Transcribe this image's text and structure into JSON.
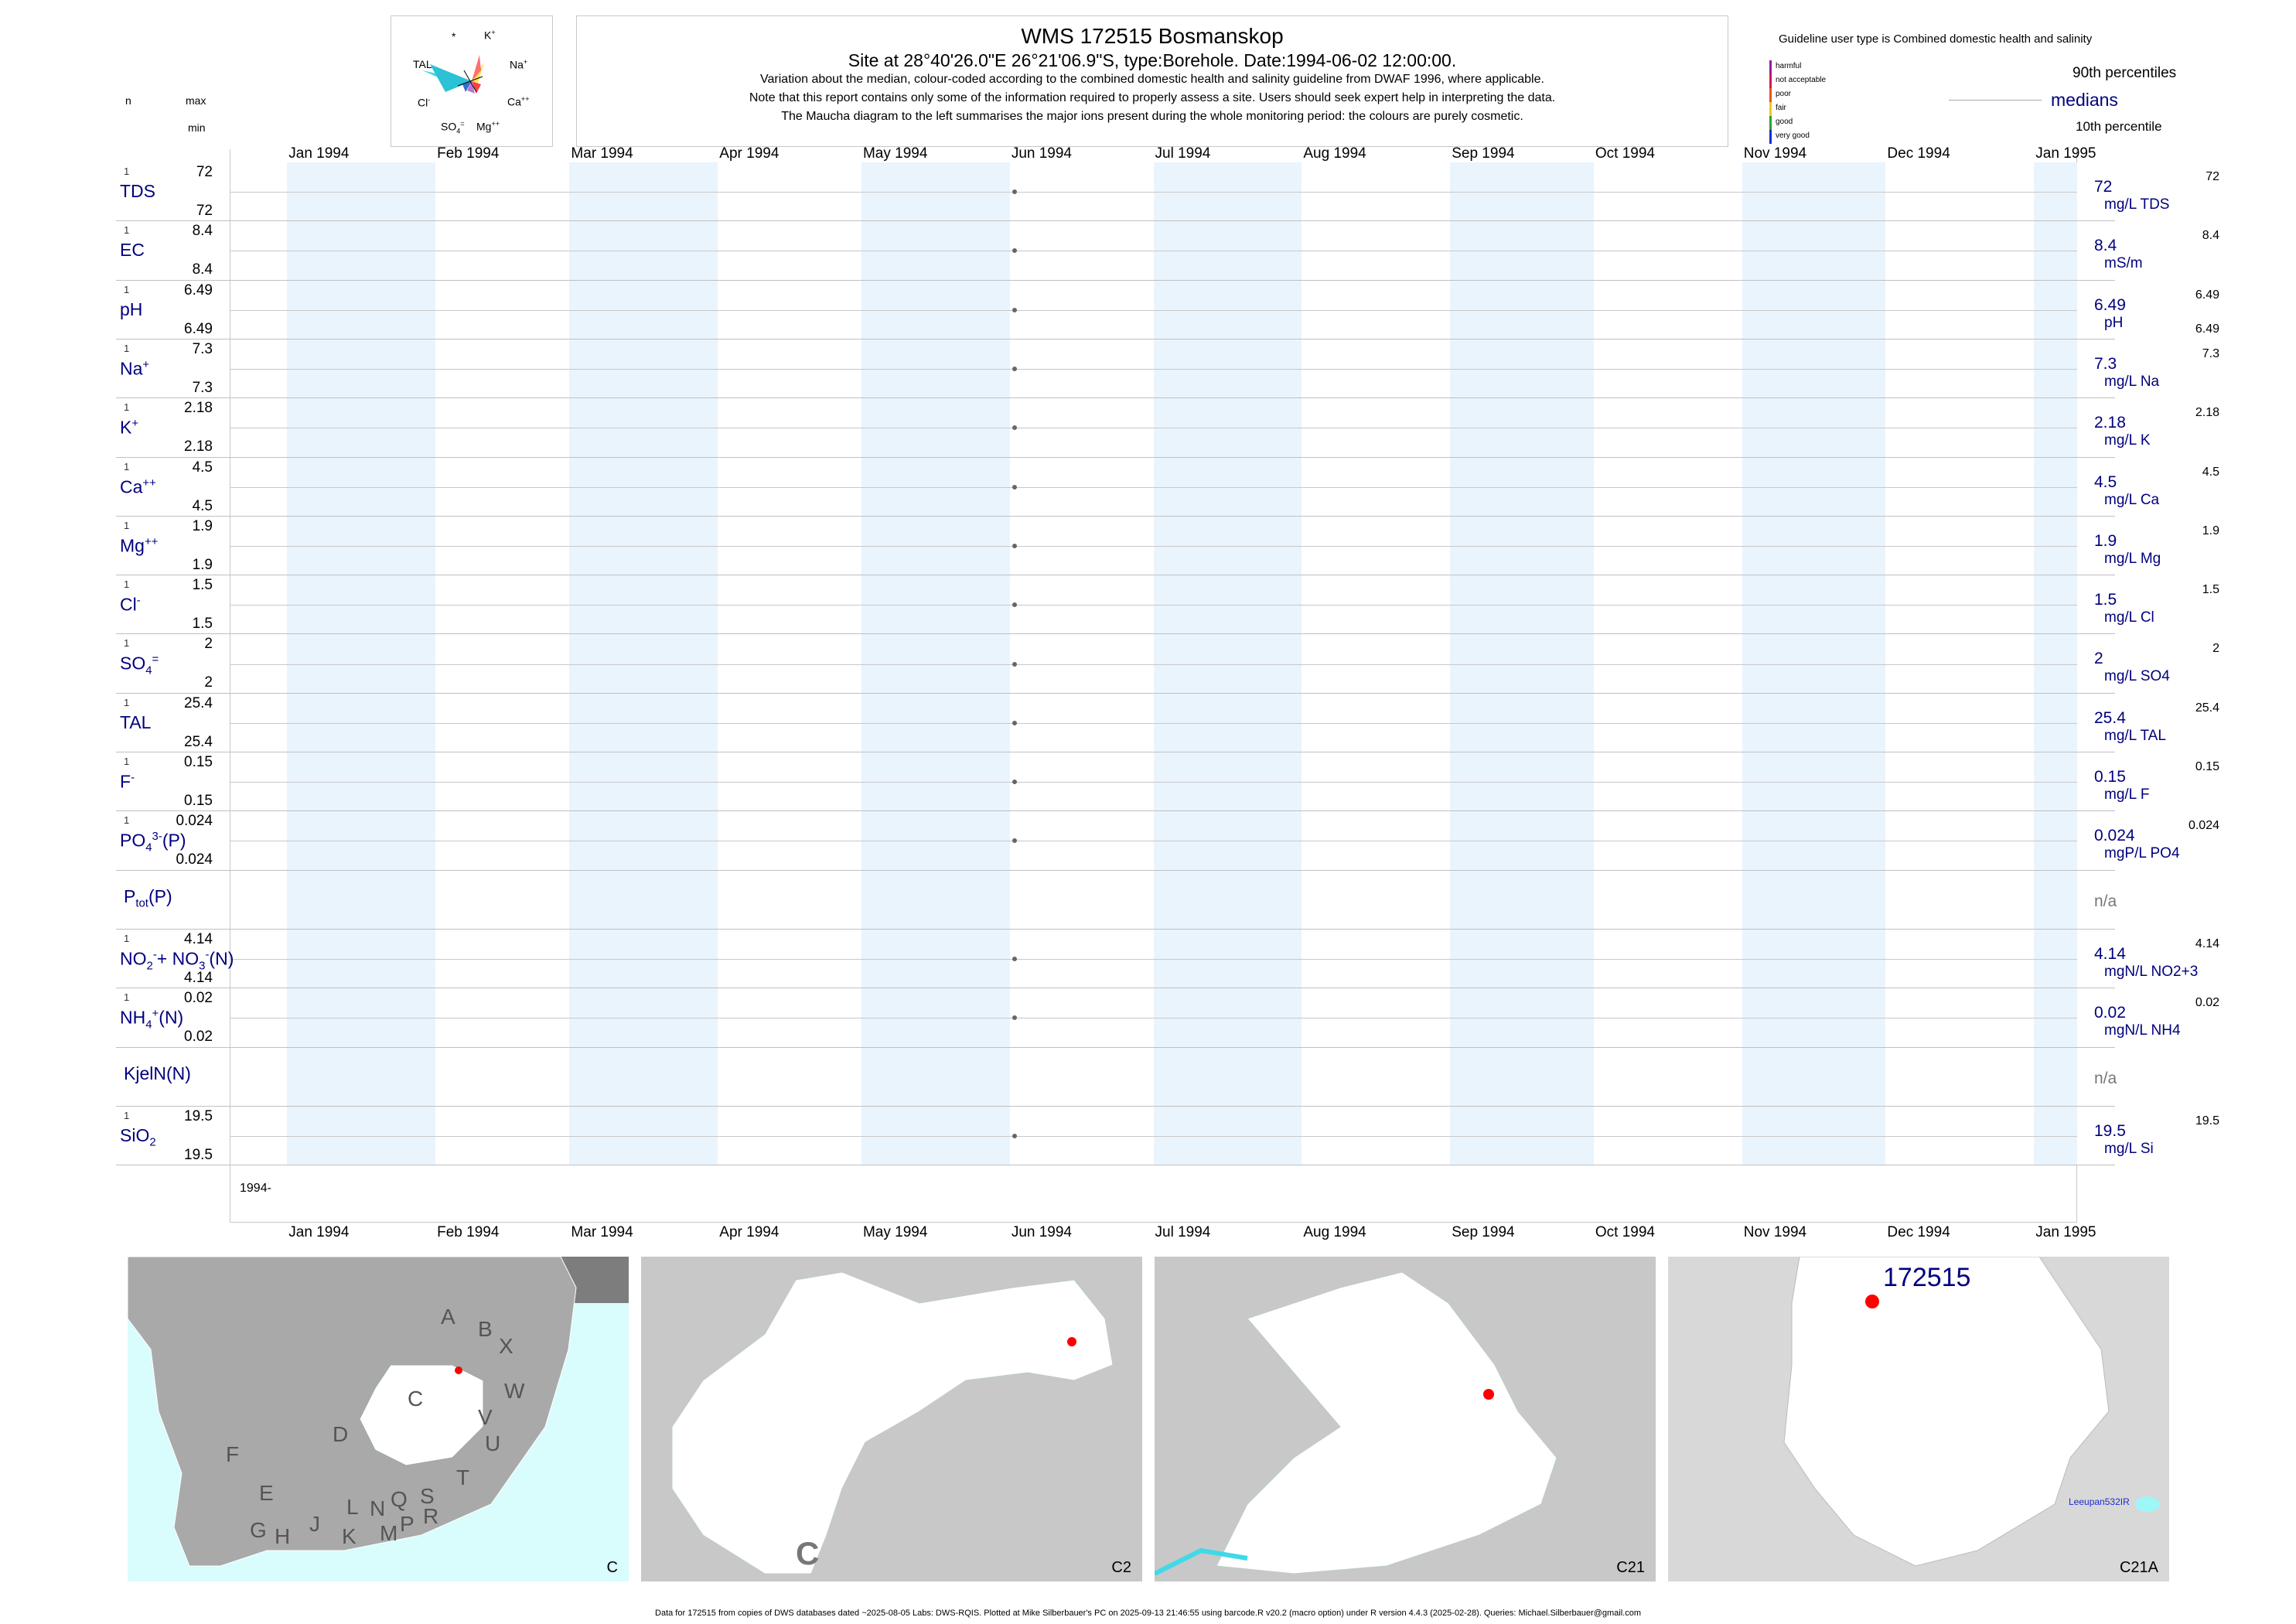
{
  "header": {
    "title": "WMS 172515  Bosmanskop",
    "subtitle": "Site at 28°40'26.0\"E 26°21'06.9\"S, type:Borehole. Date:1994-06-02 12:00:00.",
    "note1": "Variation about the median,  colour-coded according to the combined domestic health and salinity guideline from DWAF 1996, where applicable.",
    "note2": "Note that this report contains only some of the information required to properly assess a site. Users should seek expert help in interpreting the data.",
    "note3": "The Maucha diagram to the left summarises the major ions present during the whole monitoring period: the colours are purely cosmetic."
  },
  "left_header": {
    "n": "n",
    "max": "max",
    "min": "min"
  },
  "maucha": {
    "star": "*",
    "k": "K",
    "na": "Na",
    "ca": "Ca",
    "mg": "Mg",
    "so4": "SO",
    "cl": "Cl",
    "tal": "TAL"
  },
  "legend": {
    "guideline": "Guideline user type is Combined domestic health and salinity",
    "levels": [
      "harmful",
      "not acceptable",
      "poor",
      "fair",
      "good",
      "very good"
    ],
    "level_colors": [
      "#9b1a9b",
      "#d4145a",
      "#e8541b",
      "#f3c81c",
      "#2ea02e",
      "#1a2bd1"
    ],
    "p90": "90th percentiles",
    "medians": "medians",
    "p10": "10th percentile"
  },
  "chart_data": {
    "type": "scatter",
    "title": "WMS 172515  Bosmanskop",
    "x_range": [
      "1993-12-20",
      "1995-01-10"
    ],
    "months": [
      "Jan 1994",
      "Feb 1994",
      "Mar 1994",
      "Apr 1994",
      "May 1994",
      "Jun 1994",
      "Jul 1994",
      "Aug 1994",
      "Sep 1994",
      "Oct 1994",
      "Nov 1994",
      "Dec 1994",
      "Jan 1995"
    ],
    "sample_date": "1994-06-02",
    "year_label": "1994-",
    "rows": [
      {
        "label": "TDS",
        "n": "1",
        "max": "72",
        "min": "72",
        "value": "72",
        "unit": "mg/L TDS",
        "rmax": "72",
        "rmin": "",
        "has_data": true
      },
      {
        "label": "EC",
        "n": "1",
        "max": "8.4",
        "min": "8.4",
        "value": "8.4",
        "unit": "mS/m",
        "rmax": "8.4",
        "rmin": "",
        "has_data": true
      },
      {
        "label": "pH",
        "n": "1",
        "max": "6.49",
        "min": "6.49",
        "value": "6.49",
        "unit": "pH",
        "rmax": "6.49",
        "rmin": "6.49",
        "has_data": true
      },
      {
        "label": "Na",
        "n": "1",
        "max": "7.3",
        "min": "7.3",
        "value": "7.3",
        "unit": "mg/L Na",
        "rmax": "7.3",
        "rmin": "",
        "has_data": true
      },
      {
        "label": "K",
        "n": "1",
        "max": "2.18",
        "min": "2.18",
        "value": "2.18",
        "unit": "mg/L K",
        "rmax": "2.18",
        "rmin": "",
        "has_data": true
      },
      {
        "label": "Ca",
        "n": "1",
        "max": "4.5",
        "min": "4.5",
        "value": "4.5",
        "unit": "mg/L Ca",
        "rmax": "4.5",
        "rmin": "",
        "has_data": true
      },
      {
        "label": "Mg",
        "n": "1",
        "max": "1.9",
        "min": "1.9",
        "value": "1.9",
        "unit": "mg/L Mg",
        "rmax": "1.9",
        "rmin": "",
        "has_data": true
      },
      {
        "label": "Cl",
        "n": "1",
        "max": "1.5",
        "min": "1.5",
        "value": "1.5",
        "unit": "mg/L Cl",
        "rmax": "1.5",
        "rmin": "",
        "has_data": true
      },
      {
        "label": "SO",
        "n": "1",
        "max": "2",
        "min": "2",
        "value": "2",
        "unit": "mg/L SO4",
        "rmax": "2",
        "rmin": "",
        "has_data": true
      },
      {
        "label": "TAL",
        "n": "1",
        "max": "25.4",
        "min": "25.4",
        "value": "25.4",
        "unit": "mg/L TAL",
        "rmax": "25.4",
        "rmin": "",
        "has_data": true
      },
      {
        "label": "F",
        "n": "1",
        "max": "0.15",
        "min": "0.15",
        "value": "0.15",
        "unit": "mg/L F",
        "rmax": "0.15",
        "rmin": "",
        "has_data": true
      },
      {
        "label": "PO",
        "n": "1",
        "max": "0.024",
        "min": "0.024",
        "value": "0.024",
        "unit": "mgP/L PO4",
        "rmax": "0.024",
        "rmin": "",
        "has_data": true
      },
      {
        "label": "P",
        "n": "",
        "max": "",
        "min": "",
        "value": "n/a",
        "unit": "",
        "rmax": "",
        "rmin": "",
        "has_data": false
      },
      {
        "label": "NO",
        "n": "1",
        "max": "4.14",
        "min": "4.14",
        "value": "4.14",
        "unit": "mgN/L NO2+3",
        "rmax": "4.14",
        "rmin": "",
        "has_data": true
      },
      {
        "label": "NH",
        "n": "1",
        "max": "0.02",
        "min": "0.02",
        "value": "0.02",
        "unit": "mgN/L NH4",
        "rmax": "0.02",
        "rmin": "",
        "has_data": true
      },
      {
        "label": "KjelN(N)",
        "n": "",
        "max": "",
        "min": "",
        "value": "n/a",
        "unit": "",
        "rmax": "",
        "rmin": "",
        "has_data": false
      },
      {
        "label": "SiO",
        "n": "1",
        "max": "19.5",
        "min": "19.5",
        "value": "19.5",
        "unit": "mg/L Si",
        "rmax": "19.5",
        "rmin": "",
        "has_data": true
      }
    ]
  },
  "maps": {
    "captions": [
      "C",
      "C2",
      "C21",
      "C21A"
    ],
    "big_letter": "C",
    "site_label": "172515",
    "lake_label": "Leeupan532IR",
    "region_letters": [
      "A",
      "B",
      "X",
      "W",
      "C",
      "V",
      "U",
      "D",
      "T",
      "F",
      "E",
      "S",
      "R",
      "Q",
      "N",
      "L",
      "P",
      "M",
      "K",
      "J",
      "H",
      "G"
    ]
  },
  "footer": "Data for 172515 from copies of DWS databases dated ~2025-08-05 Labs: DWS-RQIS. Plotted at Mike Silberbauer's PC on 2025-09-13 21:46:55 using barcode.R v20.2 (macro option) under R version 4.4.3 (2025-02-28). Queries: Michael.Silberbauer@gmail.com"
}
